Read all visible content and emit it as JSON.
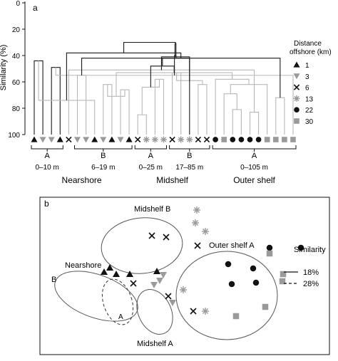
{
  "chart_data": [
    {
      "type": "dendrogram",
      "panel_label": "a",
      "ylabel": "Similarity (%)",
      "ylim": [
        0,
        100
      ],
      "y_ticks": [
        "0",
        "20",
        "40",
        "60",
        "80",
        "100"
      ],
      "leaves": [
        {
          "symbol": "triangle",
          "offshore": "1"
        },
        {
          "symbol": "triangle-down",
          "offshore": "3"
        },
        {
          "symbol": "triangle-down",
          "offshore": "3"
        },
        {
          "symbol": "triangle",
          "offshore": "1"
        },
        {
          "symbol": "cross",
          "offshore": "6"
        },
        {
          "symbol": "triangle-down",
          "offshore": "3"
        },
        {
          "symbol": "triangle-down",
          "offshore": "3"
        },
        {
          "symbol": "triangle",
          "offshore": "1"
        },
        {
          "symbol": "triangle-down",
          "offshore": "3"
        },
        {
          "symbol": "triangle",
          "offshore": "1"
        },
        {
          "symbol": "triangle-down",
          "offshore": "3"
        },
        {
          "symbol": "triangle",
          "offshore": "1"
        },
        {
          "symbol": "cross",
          "offshore": "6"
        },
        {
          "symbol": "star",
          "offshore": "13"
        },
        {
          "symbol": "star",
          "offshore": "13"
        },
        {
          "symbol": "star",
          "offshore": "13"
        },
        {
          "symbol": "cross",
          "offshore": "6"
        },
        {
          "symbol": "star",
          "offshore": "13"
        },
        {
          "symbol": "star",
          "offshore": "13"
        },
        {
          "symbol": "cross",
          "offshore": "6"
        },
        {
          "symbol": "cross",
          "offshore": "6"
        },
        {
          "symbol": "circle",
          "offshore": "22"
        },
        {
          "symbol": "square",
          "offshore": "30"
        },
        {
          "symbol": "circle",
          "offshore": "22"
        },
        {
          "symbol": "circle",
          "offshore": "22"
        },
        {
          "symbol": "circle",
          "offshore": "22"
        },
        {
          "symbol": "circle",
          "offshore": "22"
        },
        {
          "symbol": "square",
          "offshore": "30"
        },
        {
          "symbol": "square",
          "offshore": "30"
        },
        {
          "symbol": "square",
          "offshore": "30"
        },
        {
          "symbol": "square",
          "offshore": "30"
        }
      ],
      "merges": [
        {
          "l": 0,
          "r": 1,
          "s": 44
        },
        {
          "l": 2,
          "r": 3,
          "s": 49
        },
        {
          "l": 5,
          "r": 6,
          "s": 55
        },
        {
          "l": 8,
          "r": 9,
          "s": 62
        },
        {
          "l": 10,
          "r": 11,
          "s": 66
        },
        {
          "l": 12,
          "r": 13,
          "s": 85
        },
        {
          "l": 14,
          "r": 15,
          "s": 58
        },
        {
          "l": 16,
          "r": 17,
          "s": 53
        },
        {
          "l": 19,
          "r": 20,
          "s": 62
        },
        {
          "l": 23,
          "r": 24,
          "s": 81
        },
        {
          "l": 25,
          "r": 26,
          "s": 83
        },
        {
          "l": 28,
          "r": 29,
          "s": 72
        },
        {
          "l": 31,
          "r": 7,
          "s": 74
        },
        {
          "l": 34,
          "r": 35,
          "s": 71
        },
        {
          "l": 36,
          "r": 37,
          "s": 64
        },
        {
          "l": 38,
          "r": 39,
          "s": 59
        },
        {
          "l": 32,
          "r": 30,
          "s": 55
        },
        {
          "l": 4,
          "r": 41,
          "s": 51
        },
        {
          "l": 33,
          "r": 42,
          "s": 42
        },
        {
          "l": 48,
          "r": 18,
          "s": 41
        },
        {
          "l": 22,
          "r": 40,
          "s": 69
        },
        {
          "l": 51,
          "r": 27,
          "s": 62
        },
        {
          "l": 21,
          "r": 52,
          "s": 58
        },
        {
          "l": 53,
          "r": 44,
          "s": 53
        },
        {
          "l": 54,
          "r": 45,
          "s": 48
        },
        {
          "l": 55,
          "r": 46,
          "s": 42
        },
        {
          "l": 47,
          "r": 50,
          "s": 40
        },
        {
          "l": 49,
          "r": 43,
          "s": 38
        },
        {
          "l": 56,
          "r": 57,
          "s": 31
        },
        {
          "l": 59,
          "r": 58,
          "s": 30
        }
      ],
      "brackets": [
        {
          "from": 0,
          "to": 3,
          "letter": "A",
          "range": "0–10 m"
        },
        {
          "from": 5,
          "to": 11,
          "letter": "B",
          "range": "6–19 m"
        },
        {
          "from": 12,
          "to": 15,
          "letter": "A",
          "range": "0–25 m"
        },
        {
          "from": 16,
          "to": 20,
          "letter": "B",
          "range": "17–85 m"
        },
        {
          "from": 21,
          "to": 30,
          "letter": "A",
          "range": "0–105 m"
        }
      ],
      "region_labels": [
        {
          "text": "Nearshore",
          "from": 0,
          "to": 11
        },
        {
          "text": "Midshelf",
          "from": 12,
          "to": 20
        },
        {
          "text": "Outer shelf",
          "from": 21,
          "to": 30
        }
      ],
      "legend": {
        "title_line1": "Distance",
        "title_line2": "offshore (km)",
        "entries": [
          {
            "symbol": "triangle",
            "label": "1",
            "color": "#111111"
          },
          {
            "symbol": "triangle-down",
            "label": "3",
            "color": "#9a9a9a"
          },
          {
            "symbol": "cross",
            "label": "6",
            "color": "#111111"
          },
          {
            "symbol": "star",
            "label": "13",
            "color": "#9a9a9a"
          },
          {
            "symbol": "circle",
            "label": "22",
            "color": "#111111"
          },
          {
            "symbol": "square",
            "label": "30",
            "color": "#9a9a9a"
          }
        ]
      },
      "colors": {
        "dark_links": "#1a1a1a",
        "light_links": "#b8b8b8"
      }
    },
    {
      "type": "scatter",
      "panel_label": "b",
      "description_of_axes": "ordination (no axes shown)",
      "points": [
        {
          "symbol": "star",
          "x": 220,
          "y": 18
        },
        {
          "symbol": "star",
          "x": 218,
          "y": 36
        },
        {
          "symbol": "star",
          "x": 232,
          "y": 48
        },
        {
          "symbol": "cross",
          "x": 157,
          "y": 54
        },
        {
          "symbol": "cross",
          "x": 177,
          "y": 56
        },
        {
          "symbol": "cross",
          "x": 221,
          "y": 68
        },
        {
          "symbol": "circle",
          "x": 322,
          "y": 71
        },
        {
          "symbol": "circle",
          "x": 366,
          "y": 71
        },
        {
          "symbol": "square",
          "x": 322,
          "y": 79
        },
        {
          "symbol": "circle",
          "x": 264,
          "y": 94
        },
        {
          "symbol": "circle",
          "x": 299,
          "y": 100
        },
        {
          "symbol": "triangle",
          "x": 98,
          "y": 99
        },
        {
          "symbol": "triangle",
          "x": 90,
          "y": 105
        },
        {
          "symbol": "triangle",
          "x": 107,
          "y": 108
        },
        {
          "symbol": "triangle",
          "x": 126,
          "y": 108
        },
        {
          "symbol": "triangle",
          "x": 164,
          "y": 104
        },
        {
          "symbol": "triangle-down",
          "x": 173,
          "y": 109
        },
        {
          "symbol": "square",
          "x": 341,
          "y": 108
        },
        {
          "symbol": "square",
          "x": 340,
          "y": 118
        },
        {
          "symbol": "triangle-down",
          "x": 168,
          "y": 117
        },
        {
          "symbol": "cross",
          "x": 131,
          "y": 121
        },
        {
          "symbol": "circle",
          "x": 269,
          "y": 122
        },
        {
          "symbol": "circle",
          "x": 303,
          "y": 120
        },
        {
          "symbol": "triangle-down",
          "x": 160,
          "y": 123
        },
        {
          "symbol": "star",
          "x": 201,
          "y": 130
        },
        {
          "symbol": "cross",
          "x": 180,
          "y": 139
        },
        {
          "symbol": "square",
          "x": 316,
          "y": 154
        },
        {
          "symbol": "triangle-down",
          "x": 186,
          "y": 148
        },
        {
          "symbol": "cross",
          "x": 215,
          "y": 160
        },
        {
          "symbol": "star",
          "x": 232,
          "y": 160
        },
        {
          "symbol": "square",
          "x": 275,
          "y": 167
        }
      ],
      "groups": [
        {
          "label": "Midshelf B"
        },
        {
          "label": "Nearshore"
        },
        {
          "label": "Outer shelf A"
        },
        {
          "label": "Midshelf A"
        },
        {
          "label": "B"
        },
        {
          "label": "A"
        }
      ],
      "legend": {
        "title": "Similarity",
        "entries": [
          {
            "style": "solid",
            "label": "18%"
          },
          {
            "style": "dashed",
            "label": "28%"
          }
        ]
      }
    }
  ]
}
